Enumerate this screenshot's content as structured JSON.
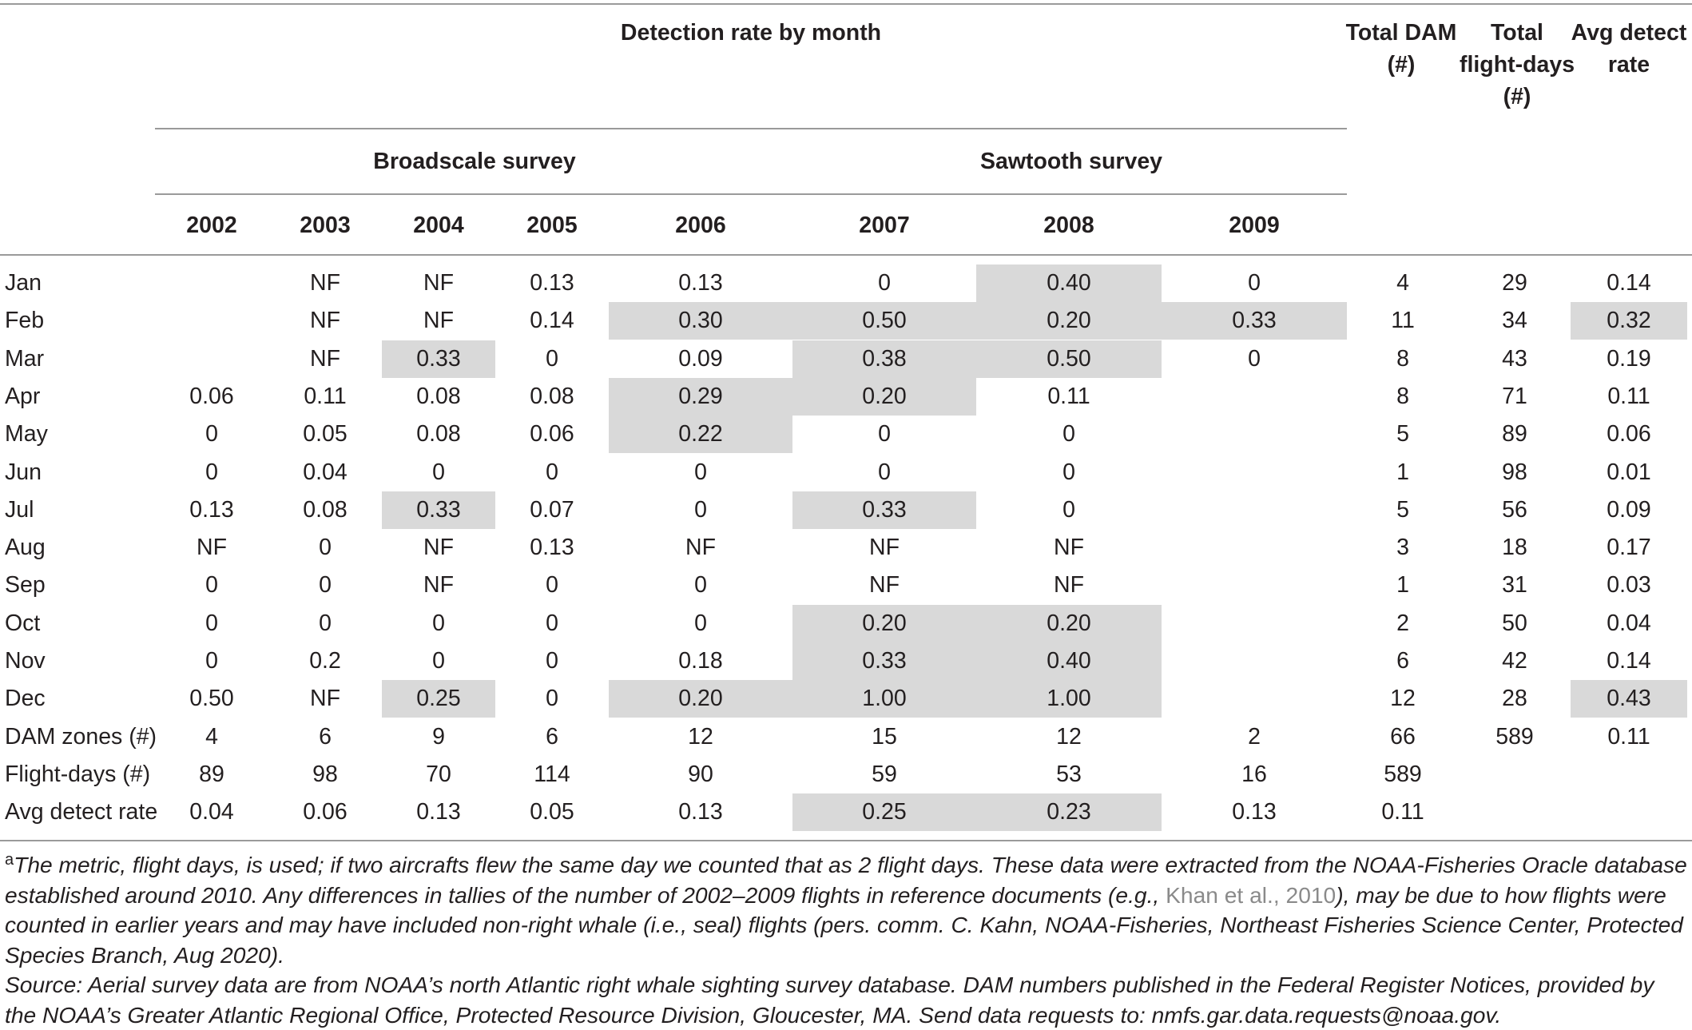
{
  "header": {
    "detection_title": "Detection rate by month",
    "total_dam": [
      "Total DAM",
      "(#)"
    ],
    "total_flight_days": [
      "Total",
      "flight-days",
      "(#)"
    ],
    "avg_detect_rate": [
      "Avg detect",
      "rate"
    ],
    "broadscale": "Broadscale survey",
    "sawtooth": "Sawtooth survey",
    "years": [
      "2002",
      "2003",
      "2004",
      "2005",
      "2006",
      "2007",
      "2008",
      "2009"
    ]
  },
  "rows": [
    {
      "label": "Jan",
      "cells": [
        "",
        "NF",
        "NF",
        "0.13",
        "0.13",
        "0",
        "0.40",
        "0",
        "4",
        "29",
        "0.14"
      ],
      "hl": [
        6
      ]
    },
    {
      "label": "Feb",
      "cells": [
        "",
        "NF",
        "NF",
        "0.14",
        "0.30",
        "0.50",
        "0.20",
        "0.33",
        "11",
        "34",
        "0.32"
      ],
      "hl": [
        4,
        5,
        6,
        7,
        10
      ]
    },
    {
      "label": "Mar",
      "cells": [
        "",
        "NF",
        "0.33",
        "0",
        "0.09",
        "0.38",
        "0.50",
        "0",
        "8",
        "43",
        "0.19"
      ],
      "hl": [
        2,
        5,
        6
      ]
    },
    {
      "label": "Apr",
      "cells": [
        "0.06",
        "0.11",
        "0.08",
        "0.08",
        "0.29",
        "0.20",
        "0.11",
        "",
        "8",
        "71",
        "0.11"
      ],
      "hl": [
        4,
        5
      ]
    },
    {
      "label": "May",
      "cells": [
        "0",
        "0.05",
        "0.08",
        "0.06",
        "0.22",
        "0",
        "0",
        "",
        "5",
        "89",
        "0.06"
      ],
      "hl": [
        4
      ]
    },
    {
      "label": "Jun",
      "cells": [
        "0",
        "0.04",
        "0",
        "0",
        "0",
        "0",
        "0",
        "",
        "1",
        "98",
        "0.01"
      ],
      "hl": []
    },
    {
      "label": "Jul",
      "cells": [
        "0.13",
        "0.08",
        "0.33",
        "0.07",
        "0",
        "0.33",
        "0",
        "",
        "5",
        "56",
        "0.09"
      ],
      "hl": [
        2,
        5
      ]
    },
    {
      "label": "Aug",
      "cells": [
        "NF",
        "0",
        "NF",
        "0.13",
        "NF",
        "NF",
        "NF",
        "",
        "3",
        "18",
        "0.17"
      ],
      "hl": []
    },
    {
      "label": "Sep",
      "cells": [
        "0",
        "0",
        "NF",
        "0",
        "0",
        "NF",
        "NF",
        "",
        "1",
        "31",
        "0.03"
      ],
      "hl": []
    },
    {
      "label": "Oct",
      "cells": [
        "0",
        "0",
        "0",
        "0",
        "0",
        "0.20",
        "0.20",
        "",
        "2",
        "50",
        "0.04"
      ],
      "hl": [
        5,
        6
      ]
    },
    {
      "label": "Nov",
      "cells": [
        "0",
        "0.2",
        "0",
        "0",
        "0.18",
        "0.33",
        "0.40",
        "",
        "6",
        "42",
        "0.14"
      ],
      "hl": [
        5,
        6
      ]
    },
    {
      "label": "Dec",
      "cells": [
        "0.50",
        "NF",
        "0.25",
        "0",
        "0.20",
        "1.00",
        "1.00",
        "",
        "12",
        "28",
        "0.43"
      ],
      "hl": [
        2,
        4,
        5,
        6,
        10
      ]
    },
    {
      "label": "DAM zones (#)",
      "cells": [
        "4",
        "6",
        "9",
        "6",
        "12",
        "15",
        "12",
        "2",
        "66",
        "589",
        "0.11"
      ],
      "hl": []
    },
    {
      "label": "Flight-days (#)",
      "cells": [
        "89",
        "98",
        "70",
        "114",
        "90",
        "59",
        "53",
        "16",
        "589",
        "",
        ""
      ],
      "hl": []
    },
    {
      "label": "Avg detect rate",
      "cells": [
        "0.04",
        "0.06",
        "0.13",
        "0.05",
        "0.13",
        "0.25",
        "0.23",
        "0.13",
        "0.11",
        "",
        ""
      ],
      "hl": [
        5,
        6
      ]
    }
  ],
  "footnote": {
    "marker": "a",
    "text_before_ref": "The metric, flight days, is used; if two aircrafts flew the same day we counted that as 2 flight days. These data were extracted from the NOAA-Fisheries Oracle database established around 2010. Any differences in tallies of the number of 2002–2009 flights in reference documents (e.g., ",
    "ref": "Khan et al., 2010",
    "text_after_ref": "), may be due to how flights were counted in earlier years and may have included non-right whale (i.e., seal) flights (pers. comm. C. Kahn, NOAA-Fisheries, Northeast Fisheries Science Center, Protected Species Branch, Aug 2020).",
    "source": "Source: Aerial survey data are from NOAA’s north Atlantic right whale sighting survey database. DAM numbers published in the Federal Register Notices, provided by the NOAA’s Greater Atlantic Regional Office, Protected Resource Division, Gloucester, MA. Send data requests to: nmfs.gar.data.requests@noaa.gov."
  },
  "colors": {
    "highlight": "#d9d9d9",
    "rule": "#9a9a9a",
    "text": "#231f20",
    "reference_link": "#8a8a8a"
  }
}
